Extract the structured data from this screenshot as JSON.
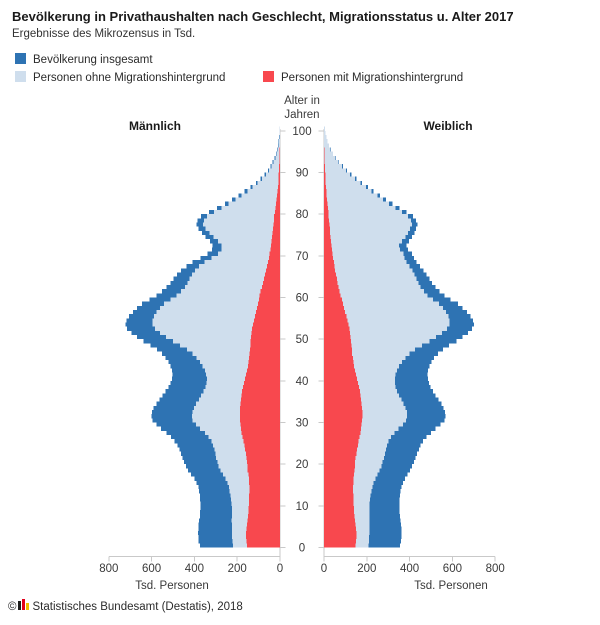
{
  "page": {
    "title": "Bevölkerung in Privathaushalten nach Geschlecht, Migrationsstatus u. Alter 2017",
    "subtitle": "Ergebnisse des Mikrozensus in Tsd."
  },
  "legend": [
    {
      "label": "Bevölkerung insgesamt",
      "color": "#2e73b3"
    },
    {
      "label": "Personen ohne Migrationshintergrund",
      "color": "#cfdeed"
    },
    {
      "label": "Personen mit Migrationshintergrund",
      "color": "#f8484e"
    }
  ],
  "labels": {
    "male": "Männlich",
    "female": "Weiblich",
    "age_axis_line1": "Alter in",
    "age_axis_line2": "Jahren",
    "unit_left": "Tsd. Personen",
    "unit_right": "Tsd. Personen"
  },
  "footer": {
    "copyright": "©",
    "text": "Statistisches Bundesamt (Destatis), 2018",
    "logo_colors": [
      "#1d1d1b",
      "#e2001a",
      "#f0bc00"
    ]
  },
  "chart_data": {
    "type": "bar",
    "variant": "population-pyramid-stepped",
    "unit": "Tsd. Personen",
    "age_min": 0,
    "age_max": 100,
    "age_ticks": [
      0,
      10,
      20,
      30,
      40,
      50,
      60,
      70,
      80,
      90,
      100
    ],
    "value_ticks": [
      0,
      200,
      400,
      600,
      800
    ],
    "value_max": 800,
    "grid": "off",
    "legend_position": "top-left",
    "colors": {
      "insgesamt": "#2e73b3",
      "ohne": "#cfdeed",
      "mit": "#f8484e",
      "axis": "#c9c9c9"
    },
    "series_names": {
      "insgesamt": "Bevölkerung insgesamt",
      "ohne": "Personen ohne Migrationshintergrund",
      "mit": "Personen mit Migrationshintergrund"
    },
    "male": {
      "insgesamt": [
        375,
        380,
        382,
        383,
        382,
        380,
        378,
        375,
        373,
        372,
        372,
        373,
        375,
        378,
        382,
        390,
        400,
        415,
        430,
        440,
        448,
        455,
        462,
        470,
        480,
        492,
        510,
        530,
        555,
        578,
        595,
        600,
        598,
        590,
        578,
        562,
        548,
        535,
        522,
        512,
        505,
        503,
        505,
        512,
        522,
        535,
        552,
        575,
        605,
        638,
        668,
        695,
        715,
        722,
        718,
        705,
        688,
        668,
        645,
        610,
        578,
        552,
        530,
        512,
        498,
        482,
        462,
        438,
        408,
        372,
        338,
        318,
        315,
        328,
        348,
        365,
        380,
        390,
        385,
        368,
        332,
        295,
        258,
        225,
        195,
        165,
        138,
        112,
        90,
        72,
        57,
        44,
        34,
        25,
        18,
        13,
        9,
        6,
        4,
        3,
        2
      ],
      "ohne": [
        220,
        223,
        224,
        225,
        225,
        225,
        226,
        225,
        225,
        225,
        226,
        228,
        231,
        235,
        239,
        246,
        254,
        267,
        279,
        287,
        293,
        298,
        302,
        307,
        313,
        321,
        335,
        351,
        373,
        393,
        408,
        412,
        410,
        403,
        393,
        379,
        368,
        358,
        349,
        344,
        342,
        345,
        351,
        362,
        375,
        391,
        410,
        435,
        467,
        501,
        532,
        561,
        584,
        595,
        596,
        588,
        576,
        561,
        543,
        512,
        483,
        462,
        445,
        432,
        423,
        412,
        397,
        378,
        352,
        320,
        290,
        273,
        273,
        289,
        311,
        330,
        347,
        359,
        356,
        341,
        308,
        274,
        240,
        209,
        181,
        153,
        128,
        104,
        83,
        66,
        52,
        40,
        31,
        22,
        16,
        11,
        8,
        5,
        3,
        3,
        2
      ],
      "mit": [
        155,
        157,
        158,
        158,
        157,
        155,
        152,
        150,
        148,
        147,
        146,
        145,
        144,
        143,
        143,
        144,
        146,
        148,
        151,
        153,
        155,
        157,
        160,
        163,
        167,
        171,
        175,
        179,
        182,
        185,
        187,
        188,
        188,
        187,
        185,
        183,
        180,
        177,
        173,
        168,
        163,
        158,
        154,
        150,
        147,
        144,
        142,
        140,
        138,
        137,
        136,
        134,
        131,
        127,
        122,
        117,
        112,
        107,
        102,
        98,
        95,
        90,
        85,
        80,
        75,
        70,
        65,
        60,
        56,
        52,
        48,
        45,
        42,
        39,
        37,
        35,
        33,
        31,
        29,
        27,
        24,
        21,
        18,
        16,
        14,
        12,
        10,
        8,
        7,
        6,
        5,
        4,
        3,
        3,
        2,
        2,
        1,
        1,
        1,
        0,
        0
      ]
    },
    "female": {
      "insgesamt": [
        356,
        360,
        362,
        363,
        362,
        360,
        358,
        355,
        353,
        352,
        352,
        353,
        355,
        358,
        362,
        368,
        378,
        390,
        402,
        412,
        420,
        428,
        435,
        443,
        452,
        463,
        480,
        500,
        522,
        545,
        562,
        568,
        566,
        558,
        548,
        535,
        522,
        510,
        498,
        490,
        485,
        483,
        485,
        492,
        502,
        515,
        532,
        555,
        585,
        618,
        648,
        672,
        692,
        700,
        696,
        685,
        668,
        648,
        625,
        592,
        562,
        540,
        520,
        505,
        492,
        480,
        465,
        448,
        432,
        420,
        412,
        392,
        385,
        398,
        412,
        422,
        430,
        436,
        430,
        415,
        385,
        352,
        320,
        290,
        262,
        232,
        205,
        178,
        152,
        128,
        107,
        88,
        71,
        56,
        43,
        33,
        24,
        17,
        12,
        8,
        5
      ],
      "ohne": [
        208,
        210,
        211,
        212,
        212,
        212,
        213,
        212,
        212,
        212,
        213,
        215,
        218,
        222,
        226,
        231,
        240,
        250,
        260,
        268,
        274,
        280,
        284,
        289,
        294,
        301,
        314,
        330,
        349,
        369,
        384,
        389,
        387,
        380,
        372,
        361,
        351,
        342,
        334,
        331,
        331,
        334,
        340,
        351,
        364,
        380,
        400,
        425,
        457,
        492,
        524,
        551,
        574,
        586,
        587,
        581,
        569,
        555,
        537,
        509,
        484,
        467,
        452,
        441,
        432,
        424,
        413,
        399,
        386,
        377,
        372,
        355,
        350,
        365,
        381,
        393,
        403,
        411,
        406,
        393,
        365,
        334,
        304,
        276,
        250,
        221,
        196,
        170,
        145,
        122,
        102,
        84,
        68,
        53,
        41,
        31,
        23,
        16,
        11,
        8,
        5
      ],
      "mit": [
        148,
        150,
        151,
        151,
        150,
        148,
        145,
        143,
        141,
        140,
        139,
        138,
        137,
        136,
        136,
        137,
        138,
        140,
        142,
        144,
        146,
        148,
        151,
        154,
        158,
        162,
        166,
        170,
        173,
        176,
        178,
        179,
        179,
        178,
        176,
        174,
        171,
        168,
        164,
        159,
        154,
        149,
        145,
        141,
        138,
        135,
        132,
        130,
        128,
        126,
        124,
        121,
        118,
        114,
        109,
        104,
        99,
        93,
        88,
        83,
        78,
        73,
        68,
        64,
        60,
        56,
        52,
        49,
        46,
        43,
        40,
        37,
        35,
        33,
        31,
        29,
        27,
        25,
        24,
        22,
        20,
        18,
        16,
        14,
        12,
        11,
        9,
        8,
        7,
        6,
        5,
        4,
        3,
        3,
        2,
        2,
        1,
        1,
        1,
        0,
        0
      ]
    }
  }
}
